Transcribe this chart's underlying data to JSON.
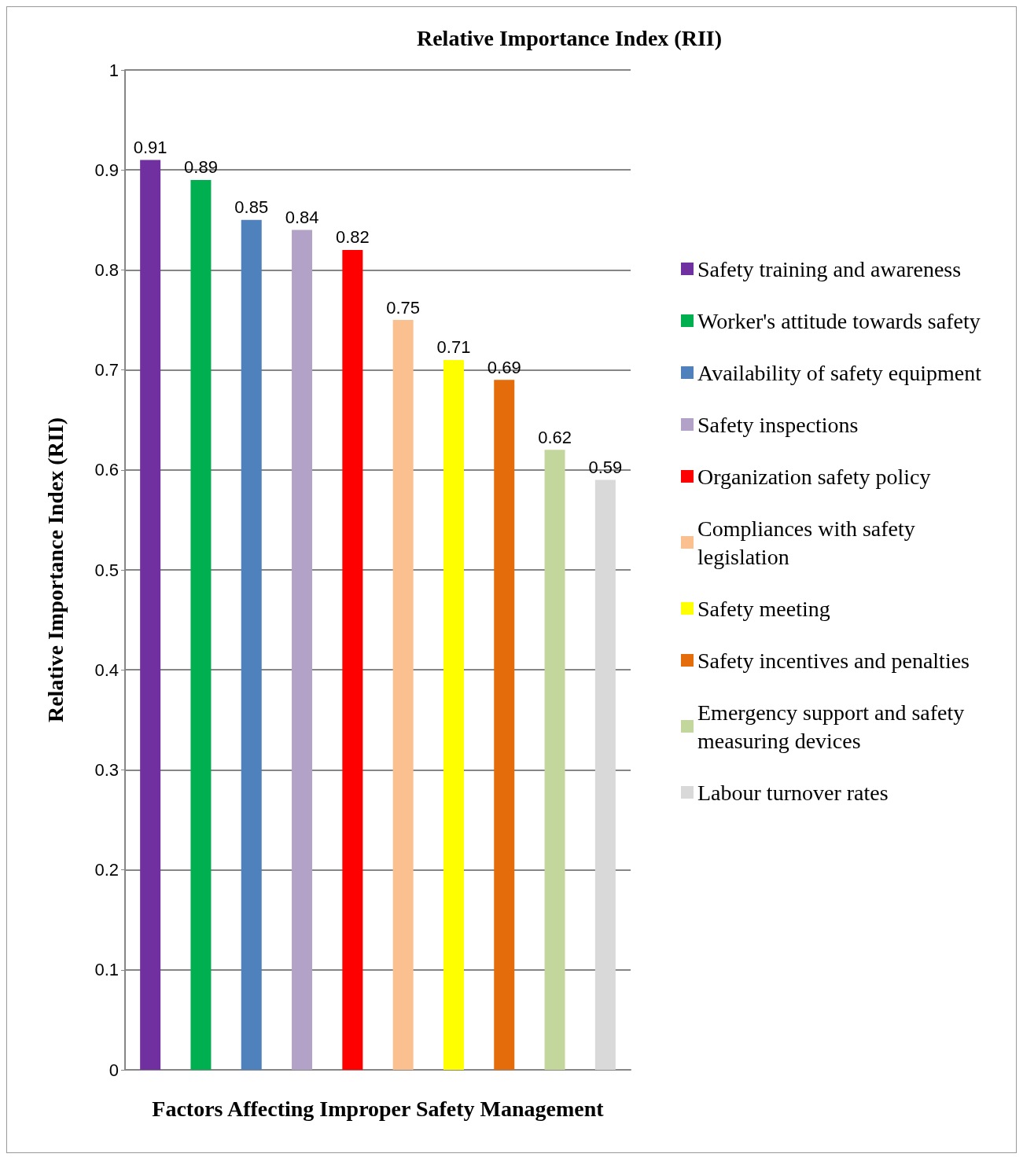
{
  "chart_data": {
    "type": "bar",
    "title": "Relative Importance Index (RII)",
    "ylabel": "Relative Importance Index (RII)",
    "xlabel": "Factors Affecting Improper Safety Management",
    "categories": [
      null,
      null,
      null,
      null,
      null,
      null,
      null,
      null,
      null,
      null
    ],
    "series": [
      {
        "name": "Safety training and awareness",
        "color": "#7030a0",
        "values": [
          0.91,
          null,
          null,
          null,
          null,
          null,
          null,
          null,
          null,
          null
        ]
      },
      {
        "name": "Worker's attitude towards safety",
        "color": "#00b050",
        "values": [
          null,
          0.89,
          null,
          null,
          null,
          null,
          null,
          null,
          null,
          null
        ]
      },
      {
        "name": "Availability of safety equipment",
        "color": "#4f81bd",
        "values": [
          null,
          null,
          0.85,
          null,
          null,
          null,
          null,
          null,
          null,
          null
        ]
      },
      {
        "name": "Safety inspections",
        "color": "#b3a2c7",
        "values": [
          null,
          null,
          null,
          0.84,
          null,
          null,
          null,
          null,
          null,
          null
        ]
      },
      {
        "name": "Organization safety policy",
        "color": "#ff0000",
        "values": [
          null,
          null,
          null,
          null,
          0.82,
          null,
          null,
          null,
          null,
          null
        ]
      },
      {
        "name": "Compliances with safety legislation",
        "color": "#fac090",
        "values": [
          null,
          null,
          null,
          null,
          null,
          0.75,
          null,
          null,
          null,
          null
        ]
      },
      {
        "name": "Safety meeting",
        "color": "#ffff00",
        "values": [
          null,
          null,
          null,
          null,
          null,
          null,
          0.71,
          null,
          null,
          null
        ]
      },
      {
        "name": "Safety incentives and penalties",
        "color": "#e46c0a",
        "values": [
          null,
          null,
          null,
          null,
          null,
          null,
          null,
          0.69,
          null,
          null
        ]
      },
      {
        "name": "Emergency support and safety measuring devices",
        "color": "#c3d69b",
        "values": [
          null,
          null,
          null,
          null,
          null,
          null,
          null,
          null,
          0.62,
          null
        ]
      },
      {
        "name": "Labour turnover rates",
        "color": "#d9d9d9",
        "values": [
          null,
          null,
          null,
          null,
          null,
          null,
          null,
          null,
          null,
          0.59
        ]
      }
    ],
    "ylim": [
      0,
      1
    ],
    "yticks": [
      0,
      0.1,
      0.2,
      0.3,
      0.4,
      0.5,
      0.6,
      0.7,
      0.8,
      0.9,
      1
    ],
    "grid": "y",
    "legend": "right",
    "data_labels": true
  }
}
